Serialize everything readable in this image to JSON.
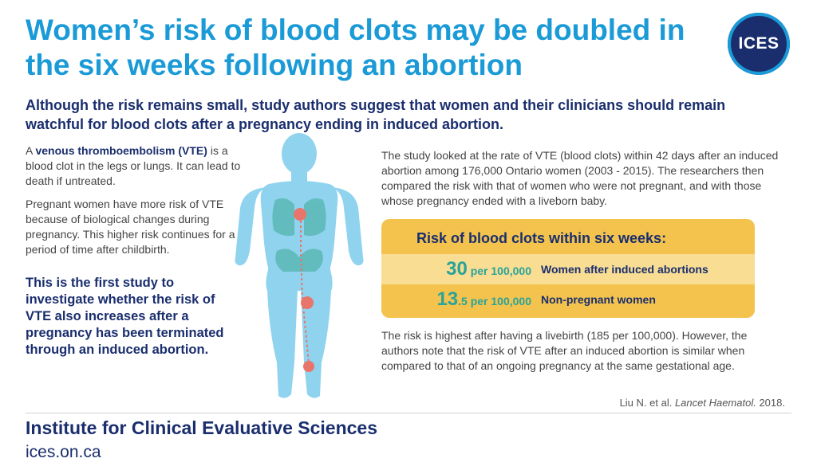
{
  "header": {
    "title": "Women’s risk of blood clots may be doubled in the six weeks following an abortion",
    "logo_text": "ICES",
    "subtitle": "Although the risk remains small, study authors suggest that women and their clinicians should remain watchful for blood clots after a pregnancy ending in induced abortion."
  },
  "left": {
    "vte_prefix": "A ",
    "vte_term": "venous thromboembolism (VTE)",
    "vte_def": " is a blood clot in the legs or lungs. It can lead to death if untreated.",
    "pregnancy_risk": "Pregnant women have more risk of VTE because of biological changes during pregnancy. This higher risk continues for a period of time after childbirth.",
    "first_study": "This is the first study to investigate whether the risk of VTE also increases after a pregnancy has been terminated through an induced abortion."
  },
  "right": {
    "study_desc": "The study looked at the rate of VTE (blood clots) within 42 days after an induced abortion among 176,000 Ontario women (2003 - 2015). The researchers then compared the risk with that of women who were not pregnant, and with those whose pregnancy ended with a liveborn baby.",
    "risk_box": {
      "title": "Risk of blood clots within six weeks:",
      "rows": [
        {
          "value_big": "30",
          "value_small": "",
          "unit": " per 100,000",
          "label": "Women after induced abortions"
        },
        {
          "value_big": "13",
          "value_small": ".5",
          "unit": " per 100,000",
          "label": "Non-pregnant women"
        }
      ]
    },
    "risk_note": "The risk is highest after having a livebirth (185 per 100,000).  However, the authors note that the risk of VTE after an induced abortion is similar when compared to that of an ongoing pregnancy at the same gestational age.",
    "citation_prefix": "Liu N. et al. ",
    "citation_journal": "Lancet Haematol.",
    "citation_year": " 2018."
  },
  "footer": {
    "org_name": "Institute for Clinical Evaluative Sciences",
    "url": "ices.on.ca"
  },
  "colors": {
    "title_blue": "#1a9ad6",
    "navy": "#1a2e6e",
    "box_yellow": "#f3c34d",
    "box_light": "#f8dd93",
    "teal": "#2aa39a",
    "body_blue": "#8fd3ee",
    "clot_red": "#e8756b"
  },
  "icons": {
    "logo": "ices-logo",
    "figure": "human-body-illustration"
  }
}
